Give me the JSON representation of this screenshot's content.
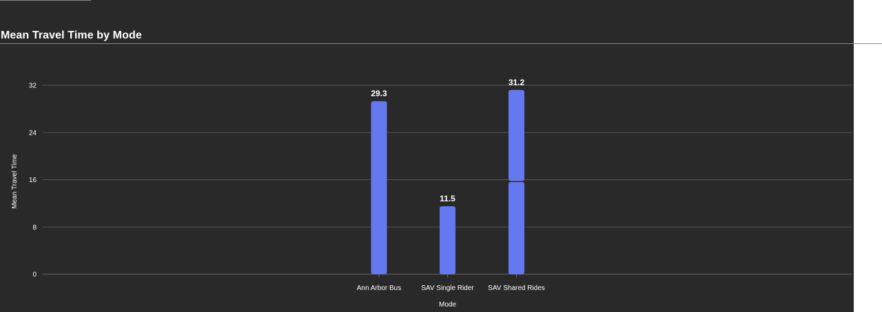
{
  "page": {
    "title": "Mean Travel Time by Mode"
  },
  "colors": {
    "background": "#292929",
    "bar": "#6479f0",
    "grid": "#555555",
    "text": "#ffffff"
  },
  "chart_data": {
    "type": "bar",
    "title": "Mean Travel Time by Mode",
    "xlabel": "Mode",
    "ylabel": "Mean Travel Time",
    "categories": [
      "Ann Arbor Bus",
      "SAV Single Rider",
      "SAV Shared Rides"
    ],
    "values": [
      29.3,
      11.5,
      31.2
    ],
    "value_labels": [
      "29.3",
      "11.5",
      "31.2"
    ],
    "stack_segments": [
      [
        29.3
      ],
      [
        11.5
      ],
      [
        15.6,
        15.6
      ]
    ],
    "yticks": [
      0,
      8,
      16,
      24,
      32
    ],
    "ylim": [
      0,
      32
    ],
    "grid": true,
    "legend": "none"
  }
}
